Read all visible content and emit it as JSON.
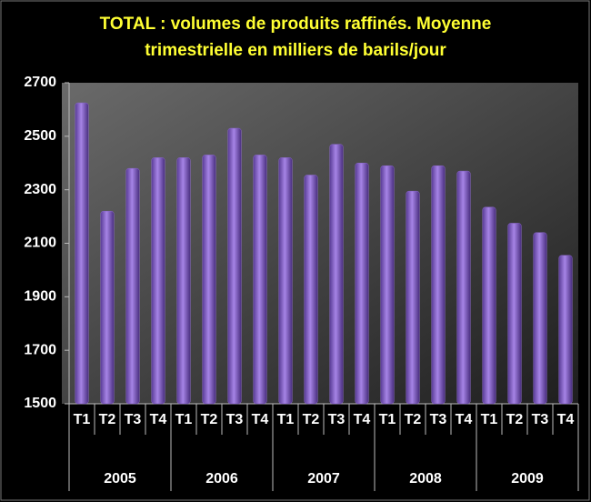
{
  "chart_data": {
    "type": "bar",
    "title": "TOTAL : volumes de produits raffinés. Moyenne trimestrielle en milliers de barils/jour",
    "categories": [
      "T1",
      "T2",
      "T3",
      "T4",
      "T1",
      "T2",
      "T3",
      "T4",
      "T1",
      "T2",
      "T3",
      "T4",
      "T1",
      "T2",
      "T3",
      "T4",
      "T1",
      "T2",
      "T3",
      "T4"
    ],
    "years": [
      "2005",
      "2006",
      "2007",
      "2008",
      "2009"
    ],
    "values": [
      2625,
      2220,
      2380,
      2420,
      2420,
      2430,
      2530,
      2430,
      2420,
      2355,
      2470,
      2400,
      2390,
      2295,
      2390,
      2370,
      2235,
      2175,
      2140,
      2055
    ],
    "color": "#8a66cc",
    "ylim": [
      1500,
      2700
    ],
    "yticks": [
      1500,
      1700,
      1900,
      2100,
      2300,
      2500,
      2700
    ],
    "grid": false
  }
}
